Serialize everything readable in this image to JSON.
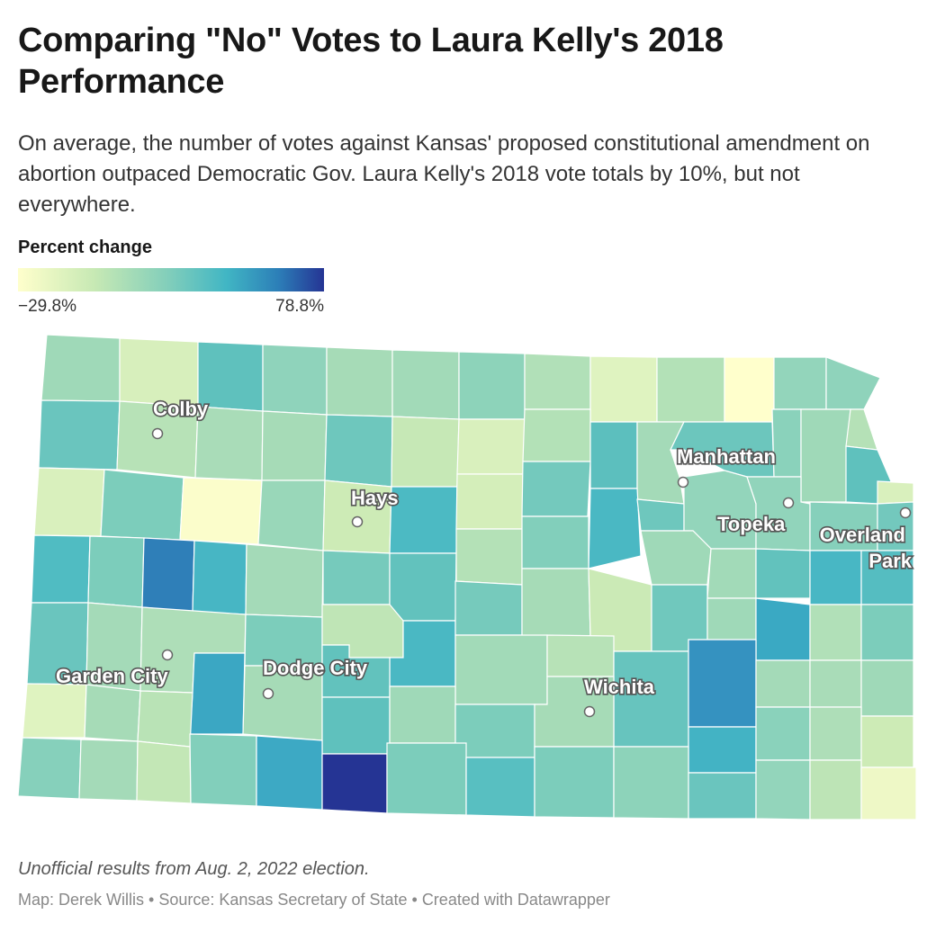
{
  "title": "Comparing \"No\" Votes to Laura Kelly's 2018 Performance",
  "description": "On average, the number of votes against Kansas' proposed constitutional amendment on abortion outpaced Democratic Gov. Laura Kelly's 2018 vote totals by 10%, but not everywhere.",
  "legend": {
    "title": "Percent change",
    "min_label": "−29.8%",
    "max_label": "78.8%",
    "min": -29.8,
    "max": 78.8,
    "colors": [
      "#ffffcc",
      "#c7e9b4",
      "#7fcdbb",
      "#41b6c4",
      "#2c7fb8",
      "#253494"
    ]
  },
  "cities": [
    {
      "name": "Colby",
      "label": "Colby"
    },
    {
      "name": "Hays",
      "label": "Hays"
    },
    {
      "name": "Manhattan",
      "label": "Manhattan"
    },
    {
      "name": "Topeka",
      "label": "Topeka"
    },
    {
      "name": "Overland Park",
      "label": "Overland\nPark"
    },
    {
      "name": "Garden City",
      "label": "Garden City"
    },
    {
      "name": "Dodge City",
      "label": "Dodge City"
    },
    {
      "name": "Wichita",
      "label": "Wichita"
    }
  ],
  "note": "Unofficial results from Aug. 2, 2022 election.",
  "byline": {
    "map": "Map: Derek Willis",
    "source": "Source: Kansas Secretary of State",
    "created": "Created with Datawrapper",
    "separator": " • "
  }
}
